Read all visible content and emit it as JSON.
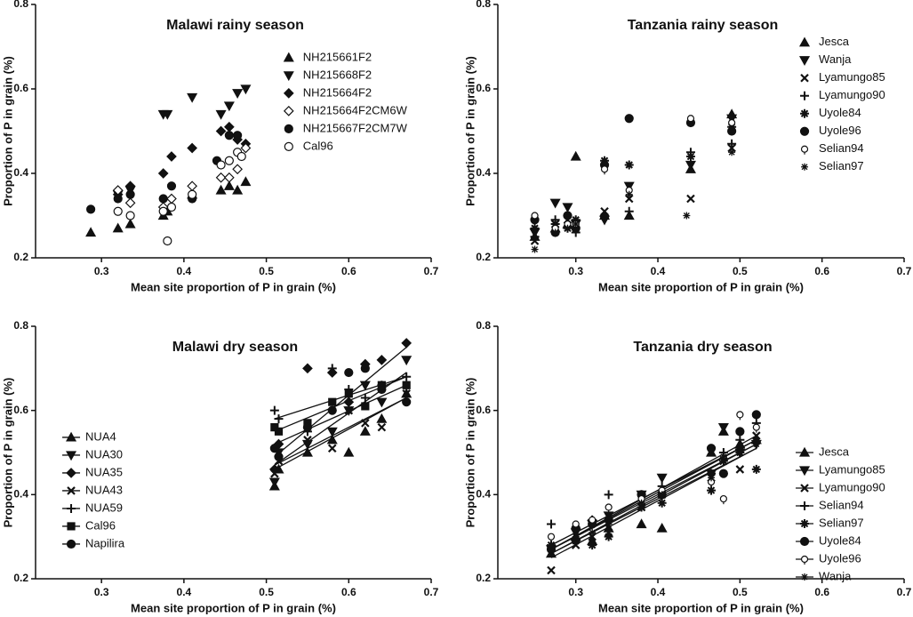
{
  "chart_data": [
    {
      "type": "scatter",
      "title": "Malawi rainy season",
      "x_label": "Mean site proportion of P in grain (%)",
      "y_label": "Proportion of P in grain (%)",
      "xlim": [
        0.22,
        0.7
      ],
      "ylim": [
        0.2,
        0.8
      ],
      "xticks": [
        0.3,
        0.4,
        0.5,
        0.6,
        0.7
      ],
      "yticks": [
        0.2,
        0.4,
        0.6,
        0.8
      ],
      "legend": "upper center",
      "trendlines": false,
      "series": [
        {
          "name": "NH215661F2",
          "marker": "triangle-up",
          "color": "#111111",
          "x": [
            0.287,
            0.32,
            0.335,
            0.375,
            0.38,
            0.41,
            0.445,
            0.455,
            0.465,
            0.475
          ],
          "values": [
            0.26,
            0.27,
            0.28,
            0.3,
            0.31,
            0.35,
            0.36,
            0.37,
            0.36,
            0.38
          ]
        },
        {
          "name": "NH215668F2",
          "marker": "triangle-down",
          "color": "#111111",
          "x": [
            0.32,
            0.335,
            0.375,
            0.38,
            0.41,
            0.445,
            0.455,
            0.465,
            0.475
          ],
          "values": [
            0.35,
            0.36,
            0.54,
            0.54,
            0.58,
            0.54,
            0.56,
            0.59,
            0.6
          ]
        },
        {
          "name": "NH215664F2",
          "marker": "diamond",
          "color": "#111111",
          "x": [
            0.32,
            0.335,
            0.375,
            0.385,
            0.41,
            0.445,
            0.455,
            0.465,
            0.475
          ],
          "values": [
            0.35,
            0.37,
            0.4,
            0.44,
            0.46,
            0.5,
            0.51,
            0.48,
            0.47
          ]
        },
        {
          "name": "NH215664F2CM6W",
          "marker": "diamond-open",
          "color": "#111111",
          "x": [
            0.32,
            0.335,
            0.375,
            0.385,
            0.41,
            0.445,
            0.455,
            0.465,
            0.475
          ],
          "values": [
            0.36,
            0.33,
            0.32,
            0.34,
            0.37,
            0.39,
            0.39,
            0.41,
            0.46
          ]
        },
        {
          "name": "NH215667F2CM7W",
          "marker": "circle",
          "color": "#111111",
          "x": [
            0.287,
            0.32,
            0.335,
            0.375,
            0.385,
            0.41,
            0.44,
            0.455,
            0.465
          ],
          "values": [
            0.315,
            0.34,
            0.35,
            0.34,
            0.37,
            0.34,
            0.43,
            0.49,
            0.49
          ]
        },
        {
          "name": "Cal96",
          "marker": "circle-open",
          "color": "#111111",
          "x": [
            0.32,
            0.335,
            0.375,
            0.38,
            0.385,
            0.41,
            0.445,
            0.455,
            0.465,
            0.47
          ],
          "values": [
            0.31,
            0.3,
            0.31,
            0.24,
            0.32,
            0.35,
            0.42,
            0.43,
            0.45,
            0.44
          ]
        }
      ]
    },
    {
      "type": "scatter",
      "title": "Tanzania rainy season",
      "x_label": "Mean site proportion of P in grain (%)",
      "y_label": "Proportion of P in grain (%)",
      "xlim": [
        0.205,
        0.7
      ],
      "ylim": [
        0.2,
        0.8
      ],
      "xticks": [
        0.3,
        0.4,
        0.5,
        0.6,
        0.7
      ],
      "yticks": [
        0.2,
        0.4,
        0.6,
        0.8
      ],
      "legend": "upper right",
      "trendlines": false,
      "series": [
        {
          "name": "Jesca",
          "marker": "triangle-up",
          "color": "#111111",
          "x": [
            0.25,
            0.275,
            0.29,
            0.3,
            0.335,
            0.365,
            0.44,
            0.49
          ],
          "values": [
            0.25,
            0.27,
            0.28,
            0.44,
            0.3,
            0.3,
            0.41,
            0.54
          ]
        },
        {
          "name": "Wanja",
          "marker": "triangle-down",
          "color": "#111111",
          "x": [
            0.25,
            0.275,
            0.29,
            0.3,
            0.335,
            0.365,
            0.44,
            0.49
          ],
          "values": [
            0.26,
            0.33,
            0.32,
            0.28,
            0.29,
            0.37,
            0.42,
            0.53
          ]
        },
        {
          "name": "Lyamungo85",
          "marker": "x",
          "color": "#111111",
          "x": [
            0.25,
            0.275,
            0.29,
            0.3,
            0.335,
            0.365,
            0.44,
            0.49
          ],
          "values": [
            0.24,
            0.28,
            0.29,
            0.28,
            0.31,
            0.34,
            0.34,
            0.46
          ]
        },
        {
          "name": "Lyamungo90",
          "marker": "plus",
          "color": "#111111",
          "x": [
            0.25,
            0.275,
            0.29,
            0.3,
            0.335,
            0.365,
            0.44,
            0.49
          ],
          "values": [
            0.25,
            0.29,
            0.3,
            0.26,
            0.3,
            0.31,
            0.45,
            0.47
          ]
        },
        {
          "name": "Uyole84",
          "marker": "asterisk",
          "color": "#111111",
          "x": [
            0.25,
            0.275,
            0.29,
            0.3,
            0.335,
            0.365,
            0.44,
            0.49
          ],
          "values": [
            0.27,
            0.28,
            0.27,
            0.29,
            0.43,
            0.42,
            0.44,
            0.51
          ]
        },
        {
          "name": "Uyole96",
          "marker": "half-circle",
          "color": "#111111",
          "x": [
            0.25,
            0.275,
            0.29,
            0.3,
            0.335,
            0.365,
            0.44,
            0.49
          ],
          "values": [
            0.29,
            0.26,
            0.3,
            0.27,
            0.42,
            0.53,
            0.52,
            0.5
          ]
        },
        {
          "name": "Selian94",
          "marker": "ring",
          "color": "#111111",
          "x": [
            0.25,
            0.275,
            0.29,
            0.3,
            0.335,
            0.365,
            0.44,
            0.49
          ],
          "values": [
            0.3,
            0.27,
            0.28,
            0.28,
            0.41,
            0.36,
            0.53,
            0.52
          ]
        },
        {
          "name": "Selian97",
          "marker": "star",
          "color": "#111111",
          "x": [
            0.25,
            0.275,
            0.29,
            0.3,
            0.335,
            0.365,
            0.435,
            0.49
          ],
          "values": [
            0.22,
            0.26,
            0.27,
            0.28,
            0.3,
            0.35,
            0.3,
            0.45
          ]
        }
      ]
    },
    {
      "type": "scatter",
      "title": "Malawi dry season",
      "x_label": "Mean site proportion of P in grain (%)",
      "y_label": "Proportion of P in grain (%)",
      "xlim": [
        0.22,
        0.7
      ],
      "ylim": [
        0.2,
        0.8
      ],
      "xticks": [
        0.3,
        0.4,
        0.5,
        0.6,
        0.7
      ],
      "yticks": [
        0.2,
        0.4,
        0.6,
        0.8
      ],
      "legend": "center left",
      "trendlines": true,
      "series": [
        {
          "name": "NUA4",
          "marker": "triangle-up",
          "color": "#111111",
          "x": [
            0.51,
            0.515,
            0.55,
            0.58,
            0.6,
            0.62,
            0.64,
            0.67
          ],
          "values": [
            0.42,
            0.46,
            0.5,
            0.53,
            0.5,
            0.55,
            0.58,
            0.64
          ],
          "trendline": {
            "x": [
              0.51,
              0.67
            ],
            "y": [
              0.46,
              0.63
            ]
          }
        },
        {
          "name": "NUA30",
          "marker": "triangle-down",
          "color": "#111111",
          "x": [
            0.51,
            0.515,
            0.55,
            0.58,
            0.6,
            0.62,
            0.64,
            0.67
          ],
          "values": [
            0.43,
            0.5,
            0.52,
            0.55,
            0.6,
            0.66,
            0.62,
            0.72
          ],
          "trendline": {
            "x": [
              0.51,
              0.67
            ],
            "y": [
              0.47,
              0.69
            ]
          }
        },
        {
          "name": "NUA35",
          "marker": "diamond",
          "color": "#111111",
          "x": [
            0.51,
            0.515,
            0.55,
            0.58,
            0.6,
            0.62,
            0.64,
            0.67
          ],
          "values": [
            0.46,
            0.52,
            0.7,
            0.69,
            0.62,
            0.71,
            0.72,
            0.76
          ],
          "trendline": {
            "x": [
              0.51,
              0.67
            ],
            "y": [
              0.49,
              0.75
            ]
          }
        },
        {
          "name": "NUA43",
          "marker": "x",
          "color": "#111111",
          "x": [
            0.51,
            0.515,
            0.55,
            0.58,
            0.6,
            0.62,
            0.64,
            0.67
          ],
          "values": [
            0.45,
            0.48,
            0.53,
            0.51,
            0.6,
            0.57,
            0.56,
            0.64
          ],
          "trendline": {
            "x": [
              0.51,
              0.67
            ],
            "y": [
              0.47,
              0.63
            ]
          }
        },
        {
          "name": "NUA59",
          "marker": "plus",
          "color": "#111111",
          "x": [
            0.51,
            0.515,
            0.55,
            0.58,
            0.6,
            0.62,
            0.64,
            0.67
          ],
          "values": [
            0.6,
            0.58,
            0.55,
            0.7,
            0.65,
            0.63,
            0.66,
            0.68
          ],
          "trendline": {
            "x": [
              0.51,
              0.67
            ],
            "y": [
              0.58,
              0.68
            ]
          }
        },
        {
          "name": "Cal96",
          "marker": "square",
          "color": "#111111",
          "x": [
            0.51,
            0.515,
            0.55,
            0.58,
            0.6,
            0.62,
            0.64,
            0.67
          ],
          "values": [
            0.56,
            0.55,
            0.57,
            0.62,
            0.64,
            0.61,
            0.66,
            0.66
          ],
          "trendline": {
            "x": [
              0.51,
              0.67
            ],
            "y": [
              0.55,
              0.68
            ]
          }
        },
        {
          "name": "Napilira",
          "marker": "half-circle",
          "color": "#111111",
          "x": [
            0.51,
            0.515,
            0.55,
            0.58,
            0.6,
            0.62,
            0.64,
            0.67
          ],
          "values": [
            0.51,
            0.49,
            0.56,
            0.6,
            0.69,
            0.7,
            0.65,
            0.62
          ],
          "trendline": {
            "x": [
              0.51,
              0.67
            ],
            "y": [
              0.52,
              0.66
            ]
          }
        }
      ]
    },
    {
      "type": "scatter",
      "title": "Tanzania dry season",
      "x_label": "Mean site proportion of P in grain (%)",
      "y_label": "Proportion of P in grain (%)",
      "xlim": [
        0.205,
        0.7
      ],
      "ylim": [
        0.2,
        0.8
      ],
      "xticks": [
        0.3,
        0.4,
        0.5,
        0.6,
        0.7
      ],
      "yticks": [
        0.2,
        0.4,
        0.6,
        0.8
      ],
      "legend": "center right",
      "trendlines": true,
      "series": [
        {
          "name": "Jesca",
          "marker": "triangle-up",
          "color": "#111111",
          "x": [
            0.27,
            0.3,
            0.32,
            0.34,
            0.38,
            0.405,
            0.465,
            0.48,
            0.5,
            0.52
          ],
          "values": [
            0.26,
            0.3,
            0.29,
            0.32,
            0.33,
            0.32,
            0.5,
            0.55,
            0.52,
            0.53
          ],
          "trendline": {
            "x": [
              0.27,
              0.52
            ],
            "y": [
              0.26,
              0.52
            ]
          }
        },
        {
          "name": "Lyamungo85",
          "marker": "triangle-down",
          "color": "#111111",
          "x": [
            0.27,
            0.3,
            0.32,
            0.34,
            0.38,
            0.405,
            0.465,
            0.48,
            0.5,
            0.52
          ],
          "values": [
            0.27,
            0.31,
            0.33,
            0.35,
            0.4,
            0.44,
            0.45,
            0.56,
            0.5,
            0.52
          ],
          "trendline": {
            "x": [
              0.27,
              0.52
            ],
            "y": [
              0.27,
              0.53
            ]
          }
        },
        {
          "name": "Lyamungo90",
          "marker": "x",
          "color": "#111111",
          "x": [
            0.27,
            0.3,
            0.32,
            0.34,
            0.38,
            0.405,
            0.465,
            0.48,
            0.5,
            0.52
          ],
          "values": [
            0.22,
            0.28,
            0.3,
            0.31,
            0.37,
            0.4,
            0.44,
            0.48,
            0.46,
            0.54
          ],
          "trendline": {
            "x": [
              0.27,
              0.52
            ],
            "y": [
              0.26,
              0.51
            ]
          }
        },
        {
          "name": "Selian94",
          "marker": "plus",
          "color": "#111111",
          "x": [
            0.27,
            0.3,
            0.32,
            0.34,
            0.38,
            0.405,
            0.465,
            0.48,
            0.5,
            0.52
          ],
          "values": [
            0.33,
            0.32,
            0.34,
            0.4,
            0.4,
            0.42,
            0.45,
            0.5,
            0.53,
            0.57
          ],
          "trendline": {
            "x": [
              0.27,
              0.52
            ],
            "y": [
              0.28,
              0.53
            ]
          }
        },
        {
          "name": "Selian97",
          "marker": "asterisk",
          "color": "#111111",
          "x": [
            0.27,
            0.3,
            0.32,
            0.34,
            0.38,
            0.405,
            0.465,
            0.48,
            0.5,
            0.52
          ],
          "values": [
            0.28,
            0.29,
            0.28,
            0.3,
            0.37,
            0.38,
            0.41,
            0.48,
            0.5,
            0.46
          ],
          "trendline": {
            "x": [
              0.27,
              0.52
            ],
            "y": [
              0.25,
              0.51
            ]
          }
        },
        {
          "name": "Uyole84",
          "marker": "half-circle",
          "color": "#111111",
          "x": [
            0.27,
            0.3,
            0.32,
            0.34,
            0.38,
            0.405,
            0.465,
            0.48,
            0.5,
            0.52
          ],
          "values": [
            0.27,
            0.32,
            0.33,
            0.34,
            0.4,
            0.4,
            0.51,
            0.45,
            0.55,
            0.59
          ],
          "trendline": {
            "x": [
              0.27,
              0.52
            ],
            "y": [
              0.27,
              0.54
            ]
          }
        },
        {
          "name": "Uyole96",
          "marker": "ring",
          "color": "#111111",
          "x": [
            0.27,
            0.3,
            0.32,
            0.34,
            0.38,
            0.405,
            0.465,
            0.48,
            0.5,
            0.52
          ],
          "values": [
            0.3,
            0.33,
            0.34,
            0.37,
            0.39,
            0.41,
            0.43,
            0.39,
            0.59,
            0.56
          ],
          "trendline": {
            "x": [
              0.27,
              0.52
            ],
            "y": [
              0.28,
              0.53
            ]
          }
        },
        {
          "name": "Wanja",
          "marker": "star",
          "color": "#111111",
          "x": [
            0.27,
            0.3,
            0.32,
            0.34,
            0.38,
            0.405,
            0.465,
            0.48,
            0.5,
            0.52
          ],
          "values": [
            0.28,
            0.3,
            0.31,
            0.33,
            0.38,
            0.4,
            0.44,
            0.49,
            0.51,
            0.52
          ],
          "trendline": {
            "x": [
              0.27,
              0.52
            ],
            "y": [
              0.27,
              0.52
            ]
          }
        }
      ]
    }
  ]
}
